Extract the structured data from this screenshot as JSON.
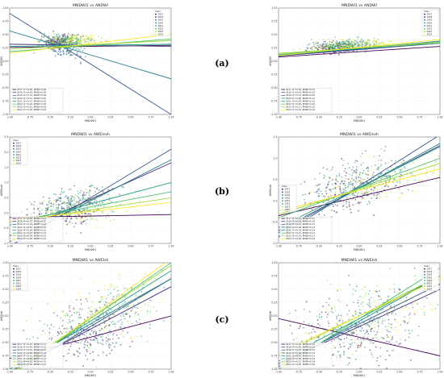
{
  "figure": {
    "years": [
      "2017",
      "2018",
      "2019",
      "2020",
      "2021",
      "2022",
      "2023",
      "2024"
    ],
    "year_colors": [
      "#440154",
      "#46327e",
      "#365c8d",
      "#277f8e",
      "#1fa187",
      "#4ac16d",
      "#a0da39",
      "#fde725"
    ],
    "row_labels": [
      "(a)",
      "(b)",
      "(c)"
    ]
  },
  "chart_data": [
    {
      "id": "a-left",
      "type": "scatter",
      "row": 0,
      "col": 0,
      "title": "MNDWI1 vs ANDWI",
      "xlabel": "MNDWI1",
      "ylabel": "ANDWI",
      "xlim": [
        -1.0,
        1.0
      ],
      "ylim": [
        -1.0,
        1.0
      ],
      "xticks": [
        "-1.00",
        "-0.75",
        "-0.50",
        "-0.25",
        "0.00",
        "0.25",
        "0.50",
        "0.75",
        "1.00"
      ],
      "yticks": [
        "-1.00",
        "-0.75",
        "-0.50",
        "-0.25",
        "0.00",
        "0.25",
        "0.50",
        "0.75",
        "1.00"
      ],
      "legend_title": "Years",
      "legend_position": "top-right",
      "cluster": {
        "cx": -0.3,
        "cy": 0.3,
        "sx": 0.15,
        "sy": 0.06
      },
      "fit_legend_position": "bottom-left",
      "fits": [
        {
          "label": "2017: R²=0.00, RMSE=0.09",
          "slope": 0.02,
          "intercept": 0.28
        },
        {
          "label": "2018: R²=0.05, RMSE=0.05",
          "slope": -0.02,
          "intercept": 0.3
        },
        {
          "label": "2019: R²=0.13, RMSE=0.04",
          "slope": -0.95,
          "intercept": -0.05
        },
        {
          "label": "2020: R²=0.31, RMSE=0.05",
          "slope": -0.45,
          "intercept": 0.12
        },
        {
          "label": "2021: R²=0.11, RMSE=0.02",
          "slope": 0.02,
          "intercept": 0.3
        },
        {
          "label": "2022: R²=0.16, RMSE=0.03",
          "slope": 0.12,
          "intercept": 0.3
        },
        {
          "label": "2023: R²=0.01, RMSE=0.03",
          "slope": 0.08,
          "intercept": 0.31
        },
        {
          "label": "2024: R²=0.23, RMSE=0.03",
          "slope": 0.18,
          "intercept": 0.33
        }
      ]
    },
    {
      "id": "a-right",
      "type": "scatter",
      "row": 0,
      "col": 1,
      "title": "MNDWI1 vs ANDWI",
      "xlabel": "MNDWI1",
      "ylabel": "ANDWI",
      "xlim": [
        -1.0,
        1.0
      ],
      "ylim": [
        -1.0,
        1.0
      ],
      "xticks": [
        "-1.00",
        "-0.75",
        "-0.50",
        "-0.25",
        "0.00",
        "0.25",
        "0.50",
        "0.75",
        "1.00"
      ],
      "yticks": [
        "-1.00",
        "-0.75",
        "-0.50",
        "-0.25",
        "0.00",
        "0.25",
        "0.50",
        "0.75",
        "1.00"
      ],
      "legend_title": "Years",
      "legend_position": "top-right",
      "cluster": {
        "cx": -0.2,
        "cy": 0.22,
        "sx": 0.2,
        "sy": 0.05
      },
      "fit_legend_position": "bottom-left",
      "fits": [
        {
          "label": "2017: R²=0.02, RMSE=0.15",
          "slope": 0.1,
          "intercept": 0.18
        },
        {
          "label": "2018: R²=0.29, RMSE=0.01",
          "slope": 0.12,
          "intercept": 0.22
        },
        {
          "label": "2019: R²=0.31, RMSE=0.02",
          "slope": 0.14,
          "intercept": 0.24
        },
        {
          "label": "2020: R²=0.46, RMSE=0.01",
          "slope": 0.11,
          "intercept": 0.23
        },
        {
          "label": "2021: R²=0.54, RMSE=0.01",
          "slope": 0.13,
          "intercept": 0.24
        },
        {
          "label": "2022: R²=0.30, RMSE=0.02",
          "slope": 0.12,
          "intercept": 0.25
        },
        {
          "label": "2023: R²=0.11, RMSE=0.02",
          "slope": 0.1,
          "intercept": 0.25
        },
        {
          "label": "2024: R²=0.12, RMSE=0.02",
          "slope": 0.15,
          "intercept": 0.26
        }
      ]
    },
    {
      "id": "b-left",
      "type": "scatter",
      "row": 1,
      "col": 0,
      "title": "MNDWI1 vs AWEInsh",
      "xlabel": "MNDWI1",
      "ylabel": "AWEInsh",
      "xlim": [
        -1.0,
        1.0
      ],
      "ylim": [
        -1.0,
        2.5
      ],
      "xticks": [
        "-1.00",
        "-0.75",
        "-0.50",
        "-0.25",
        "0.00",
        "0.25",
        "0.50",
        "0.75",
        "1.00"
      ],
      "yticks": [
        "-1.0",
        "-0.5",
        "0.0",
        "0.5",
        "1.0",
        "1.5",
        "2.0",
        "2.5"
      ],
      "legend_title": "Years",
      "legend_position": "top-left",
      "cluster": {
        "cx": -0.2,
        "cy": 0.05,
        "sx": 0.28,
        "sy": 0.25
      },
      "fit_legend_position": "bottom-left",
      "fits": [
        {
          "label": "2017: R²=0.00, RMSE=0.21",
          "slope": 0.05,
          "intercept": -0.1
        },
        {
          "label": "2018: R²=0.02, RMSE=0.10",
          "slope": 1.2,
          "intercept": 0.45
        },
        {
          "label": "2019: R²=0.15, RMSE=0.12",
          "slope": 1.6,
          "intercept": 0.5
        },
        {
          "label": "2020: R²=0.01, RMSE=0.18",
          "slope": 1.35,
          "intercept": 0.4
        },
        {
          "label": "2021: R²=0.04, RMSE=0.16",
          "slope": 0.7,
          "intercept": 0.3
        },
        {
          "label": "2022: R²=0.07, RMSE=0.14",
          "slope": 0.5,
          "intercept": 0.2
        },
        {
          "label": "2023: R²=0.09, RMSE=0.13",
          "slope": 0.4,
          "intercept": 0.1
        },
        {
          "label": "2024: R²=0.05, RMSE=0.12",
          "slope": 0.3,
          "intercept": 0.05
        }
      ]
    },
    {
      "id": "b-right",
      "type": "scatter",
      "row": 1,
      "col": 1,
      "title": "MNDWI1 vs AWEInsh",
      "xlabel": "MNDWI1",
      "ylabel": "AWEInsh",
      "xlim": [
        -1.0,
        1.0
      ],
      "ylim": [
        -1.0,
        1.5
      ],
      "xticks": [
        "-1.00",
        "-0.75",
        "-0.50",
        "-0.25",
        "0.00",
        "0.25",
        "0.50",
        "0.75",
        "1.00"
      ],
      "yticks": [
        "-1.0",
        "-0.5",
        "0.0",
        "0.5",
        "1.0",
        "1.5"
      ],
      "legend_title": "Years",
      "legend_position": "bottom-left",
      "cluster": {
        "cx": 0.0,
        "cy": 0.35,
        "sx": 0.35,
        "sy": 0.25
      },
      "fit_legend_position": "bottom-left",
      "fits": [
        {
          "label": "2017: R²=0.21, RMSE=0.21",
          "slope": 0.45,
          "intercept": 0.1
        },
        {
          "label": "2018: R²=0.28, RMSE=0.18",
          "slope": 1.0,
          "intercept": 0.3
        },
        {
          "label": "2019: R²=0.41, RMSE=0.17",
          "slope": 1.2,
          "intercept": 0.35
        },
        {
          "label": "2020: R²=0.38, RMSE=0.13",
          "slope": 1.05,
          "intercept": 0.3
        },
        {
          "label": "2021: R²=0.35, RMSE=0.14",
          "slope": 0.95,
          "intercept": 0.32
        },
        {
          "label": "2022: R²=0.27, RMSE=0.13",
          "slope": 0.7,
          "intercept": 0.3
        },
        {
          "label": "2023: R²=0.14, RMSE=0.13",
          "slope": 0.6,
          "intercept": 0.28
        },
        {
          "label": "2024: R²=0.08, RMSE=0.10",
          "slope": 0.5,
          "intercept": 0.25
        }
      ]
    },
    {
      "id": "c-left",
      "type": "scatter",
      "row": 2,
      "col": 0,
      "title": "MNDWI1 vs AWEIsh",
      "xlabel": "MNDWI1",
      "ylabel": "AWEIsh",
      "xlim": [
        -1.0,
        1.0
      ],
      "ylim": [
        -1.0,
        1.0
      ],
      "xticks": [
        "-1.00",
        "-0.75",
        "-0.50",
        "-0.25",
        "0.00",
        "0.25",
        "0.50",
        "0.75",
        "1.00"
      ],
      "yticks": [
        "-1.00",
        "-0.75",
        "-0.50",
        "-0.25",
        "0.00",
        "0.25",
        "0.50",
        "0.75",
        "1.00"
      ],
      "legend_title": "Years",
      "legend_position": "top-left",
      "cluster": {
        "cx": 0.05,
        "cy": -0.15,
        "sx": 0.35,
        "sy": 0.3
      },
      "fit_legend_position": "bottom-left",
      "fits": [
        {
          "label": "2017: R²=0.07, RMSE=0.11",
          "slope": 0.4,
          "intercept": -0.4
        },
        {
          "label": "2018: R²=0.40, RMSE=0.15",
          "slope": 0.8,
          "intercept": -0.25
        },
        {
          "label": "2019: R²=0.35, RMSE=0.12",
          "slope": 0.9,
          "intercept": -0.2
        },
        {
          "label": "2020: R²=0.26, RMSE=0.13",
          "slope": 0.85,
          "intercept": -0.15
        },
        {
          "label": "2021: R²=0.41, RMSE=0.18",
          "slope": 0.95,
          "intercept": -0.1
        },
        {
          "label": "2022: R²=0.26, RMSE=0.13",
          "slope": 1.05,
          "intercept": -0.05
        },
        {
          "label": "2023: R²=0.52, RMSE=0.15",
          "slope": 1.0,
          "intercept": -0.05
        },
        {
          "label": "2024: R²=0.36, RMSE=0.14",
          "slope": 1.1,
          "intercept": -0.02
        }
      ]
    },
    {
      "id": "c-right",
      "type": "scatter",
      "row": 2,
      "col": 1,
      "title": "MNDWI1 vs AWEIsh",
      "xlabel": "MNDWI1",
      "ylabel": "AWEIsh",
      "xlim": [
        -1.0,
        1.0
      ],
      "ylim": [
        -1.0,
        1.0
      ],
      "xticks": [
        "-1.00",
        "-0.75",
        "-0.50",
        "-0.25",
        "0.00",
        "0.25",
        "0.50",
        "0.75",
        "1.00"
      ],
      "yticks": [
        "-1.00",
        "-0.75",
        "-0.50",
        "-0.25",
        "0.00",
        "0.25",
        "0.50",
        "0.75",
        "1.00"
      ],
      "legend_title": "Years",
      "legend_position": "top-right",
      "cluster": {
        "cx": 0.05,
        "cy": -0.1,
        "sx": 0.4,
        "sy": 0.35
      },
      "fit_legend_position": "bottom-left",
      "fits": [
        {
          "label": "2017: R²=0.01, RMSE=0.15",
          "slope": -0.35,
          "intercept": -0.4
        },
        {
          "label": "2018: R²=0.26, RMSE=0.12",
          "slope": 0.7,
          "intercept": -0.2
        },
        {
          "label": "2019: R²=0.25, RMSE=0.13",
          "slope": 0.75,
          "intercept": -0.15
        },
        {
          "label": "2020: R²=0.30, RMSE=0.13",
          "slope": 0.85,
          "intercept": -0.1
        },
        {
          "label": "2021: R²=0.22, RMSE=0.13",
          "slope": 0.8,
          "intercept": -0.05
        },
        {
          "label": "2022: R²=0.58, RMSE=0.15",
          "slope": 0.95,
          "intercept": -0.05
        },
        {
          "label": "2023: R²=0.27, RMSE=0.14",
          "slope": 0.75,
          "intercept": 0.0
        },
        {
          "label": "2024: R²=0.26, RMSE=0.10",
          "slope": 0.7,
          "intercept": 0.0
        }
      ]
    }
  ]
}
